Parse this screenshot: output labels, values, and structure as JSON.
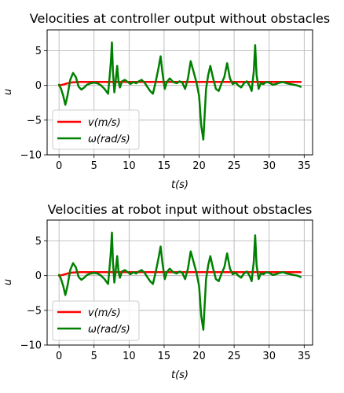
{
  "chart_data": [
    {
      "type": "line",
      "title": "Velocities at controller output without obstacles",
      "xlabel": "t(s)",
      "ylabel": "u",
      "xlim": [
        -1.7,
        36.2
      ],
      "ylim": [
        -10,
        8
      ],
      "xticks": [
        0,
        5,
        10,
        15,
        20,
        25,
        30,
        35
      ],
      "yticks": [
        -10,
        -5,
        0,
        5
      ],
      "ytick_labels": [
        "−10",
        "−5",
        "0",
        "5"
      ],
      "grid": true,
      "legend": "lower-left",
      "series": [
        {
          "name": "v(m/s)",
          "color": "#ff0000",
          "x": [
            0,
            0.5,
            1,
            1.5,
            2,
            3,
            4,
            5,
            10,
            15,
            20,
            25,
            30,
            34.5
          ],
          "y": [
            0,
            0.1,
            0.25,
            0.38,
            0.45,
            0.5,
            0.5,
            0.5,
            0.5,
            0.5,
            0.5,
            0.5,
            0.5,
            0.5
          ]
        },
        {
          "name": "ω(rad/s)",
          "color": "#008000",
          "x": [
            0,
            0.3,
            0.6,
            0.9,
            1.2,
            1.6,
            2.0,
            2.4,
            2.8,
            3.2,
            3.6,
            4.0,
            4.5,
            5.0,
            5.5,
            6.0,
            6.5,
            7.0,
            7.2,
            7.4,
            7.55,
            7.7,
            7.9,
            8.1,
            8.3,
            8.5,
            8.7,
            9.0,
            9.4,
            9.8,
            10.2,
            10.6,
            11.0,
            11.4,
            11.8,
            12.2,
            12.6,
            13.0,
            13.4,
            13.8,
            14.2,
            14.5,
            14.8,
            15.1,
            15.4,
            15.8,
            16.3,
            16.8,
            17.2,
            17.6,
            18.0,
            18.4,
            18.8,
            19.2,
            19.6,
            20.0,
            20.3,
            20.6,
            20.8,
            21.0,
            21.3,
            21.6,
            22.0,
            22.4,
            22.8,
            23.2,
            23.6,
            24.0,
            24.4,
            24.8,
            25.2,
            25.6,
            26.0,
            26.4,
            26.8,
            27.2,
            27.5,
            27.8,
            28.0,
            28.2,
            28.5,
            28.8,
            29.2,
            29.6,
            30.0,
            30.5,
            31.0,
            31.5,
            32.0,
            32.5,
            33.0,
            33.5,
            34.0,
            34.5
          ],
          "y": [
            0.1,
            -0.5,
            -1.5,
            -2.8,
            -1.5,
            0.8,
            1.8,
            1.2,
            -0.2,
            -0.6,
            -0.3,
            0.1,
            0.3,
            0.4,
            0.3,
            0.0,
            -0.5,
            -1.2,
            1.0,
            3.5,
            6.2,
            2.0,
            -1.0,
            0.8,
            2.8,
            0.5,
            -0.3,
            0.6,
            0.8,
            0.5,
            0.2,
            0.5,
            0.3,
            0.6,
            0.8,
            0.4,
            -0.2,
            -0.8,
            -1.2,
            0.5,
            2.5,
            4.2,
            1.5,
            -0.5,
            0.5,
            1.0,
            0.5,
            0.3,
            0.6,
            0.4,
            -0.5,
            1.0,
            3.5,
            2.0,
            0.5,
            -1.5,
            -5.8,
            -7.8,
            -4.0,
            -0.5,
            1.5,
            2.8,
            1.0,
            -0.5,
            -0.8,
            0.3,
            1.2,
            3.2,
            1.0,
            0.2,
            0.4,
            0.0,
            -0.3,
            0.3,
            0.6,
            0.0,
            -0.8,
            2.0,
            5.8,
            1.5,
            -0.5,
            0.3,
            0.2,
            0.5,
            0.4,
            0.1,
            0.2,
            0.4,
            0.5,
            0.3,
            0.2,
            0.1,
            0.0,
            -0.2
          ]
        }
      ]
    },
    {
      "type": "line",
      "title": "Velocities at robot input without obstacles",
      "xlabel": "t(s)",
      "ylabel": "u",
      "xlim": [
        -1.7,
        36.2
      ],
      "ylim": [
        -10,
        8
      ],
      "xticks": [
        0,
        5,
        10,
        15,
        20,
        25,
        30,
        35
      ],
      "yticks": [
        -10,
        -5,
        0,
        5
      ],
      "ytick_labels": [
        "−10",
        "−5",
        "0",
        "5"
      ],
      "grid": true,
      "legend": "lower-left",
      "series": [
        {
          "name": "v(m/s)",
          "color": "#ff0000",
          "x": [
            0,
            0.5,
            1,
            1.5,
            2,
            3,
            4,
            5,
            10,
            15,
            20,
            25,
            30,
            34.5
          ],
          "y": [
            0,
            0.1,
            0.25,
            0.38,
            0.45,
            0.5,
            0.5,
            0.5,
            0.5,
            0.5,
            0.5,
            0.5,
            0.5,
            0.5
          ]
        },
        {
          "name": "ω(rad/s)",
          "color": "#008000",
          "x": [
            0,
            0.3,
            0.6,
            0.9,
            1.2,
            1.6,
            2.0,
            2.4,
            2.8,
            3.2,
            3.6,
            4.0,
            4.5,
            5.0,
            5.5,
            6.0,
            6.5,
            7.0,
            7.2,
            7.4,
            7.55,
            7.7,
            7.9,
            8.1,
            8.3,
            8.5,
            8.7,
            9.0,
            9.4,
            9.8,
            10.2,
            10.6,
            11.0,
            11.4,
            11.8,
            12.2,
            12.6,
            13.0,
            13.4,
            13.8,
            14.2,
            14.5,
            14.8,
            15.1,
            15.4,
            15.8,
            16.3,
            16.8,
            17.2,
            17.6,
            18.0,
            18.4,
            18.8,
            19.2,
            19.6,
            20.0,
            20.3,
            20.6,
            20.8,
            21.0,
            21.3,
            21.6,
            22.0,
            22.4,
            22.8,
            23.2,
            23.6,
            24.0,
            24.4,
            24.8,
            25.2,
            25.6,
            26.0,
            26.4,
            26.8,
            27.2,
            27.5,
            27.8,
            28.0,
            28.2,
            28.5,
            28.8,
            29.2,
            29.6,
            30.0,
            30.5,
            31.0,
            31.5,
            32.0,
            32.5,
            33.0,
            33.5,
            34.0,
            34.5
          ],
          "y": [
            0.1,
            -0.5,
            -1.5,
            -2.8,
            -1.5,
            0.8,
            1.8,
            1.2,
            -0.2,
            -0.6,
            -0.3,
            0.1,
            0.3,
            0.4,
            0.3,
            0.0,
            -0.5,
            -1.2,
            1.0,
            3.5,
            6.2,
            2.0,
            -1.0,
            0.8,
            2.8,
            0.5,
            -0.3,
            0.6,
            0.8,
            0.5,
            0.2,
            0.5,
            0.3,
            0.6,
            0.8,
            0.4,
            -0.2,
            -0.8,
            -1.2,
            0.5,
            2.5,
            4.2,
            1.5,
            -0.5,
            0.5,
            1.0,
            0.5,
            0.3,
            0.6,
            0.4,
            -0.5,
            1.0,
            3.5,
            2.0,
            0.5,
            -1.5,
            -5.8,
            -7.8,
            -4.0,
            -0.5,
            1.5,
            2.8,
            1.0,
            -0.5,
            -0.8,
            0.3,
            1.2,
            3.2,
            1.0,
            0.2,
            0.4,
            0.0,
            -0.3,
            0.3,
            0.6,
            0.0,
            -0.8,
            2.0,
            5.8,
            1.5,
            -0.5,
            0.3,
            0.2,
            0.5,
            0.4,
            0.1,
            0.2,
            0.4,
            0.5,
            0.3,
            0.2,
            0.1,
            0.0,
            -0.2
          ]
        }
      ]
    }
  ]
}
